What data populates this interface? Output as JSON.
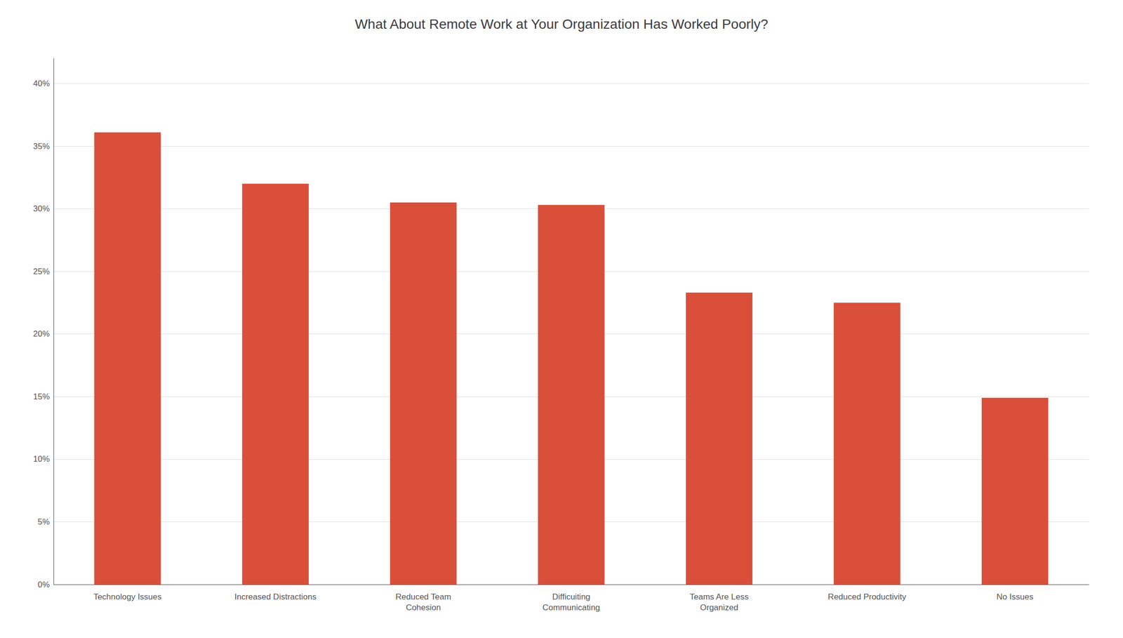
{
  "chart_data": {
    "type": "bar",
    "title": "What About Remote Work at Your Organization Has Worked Poorly?",
    "categories": [
      "Technology Issues",
      "Increased Distractions",
      "Reduced Team\nCohesion",
      "Difficuiting\nCommunicating",
      "Teams Are Less\nOrganized",
      "Reduced Productivity",
      "No Issues"
    ],
    "values": [
      0.361,
      0.32,
      0.305,
      0.303,
      0.233,
      0.225,
      0.149
    ],
    "color": "#D94F3A",
    "ylim": [
      0,
      0.42
    ],
    "yticks": [
      {
        "value": 0.0,
        "label": "0%"
      },
      {
        "value": 0.05,
        "label": "5%"
      },
      {
        "value": 0.1,
        "label": "10%"
      },
      {
        "value": 0.15,
        "label": "15%"
      },
      {
        "value": 0.2,
        "label": "20%"
      },
      {
        "value": 0.25,
        "label": "25%"
      },
      {
        "value": 0.3,
        "label": "30%"
      },
      {
        "value": 0.35,
        "label": "35%"
      },
      {
        "value": 0.4,
        "label": "40%"
      }
    ],
    "grid": true
  }
}
